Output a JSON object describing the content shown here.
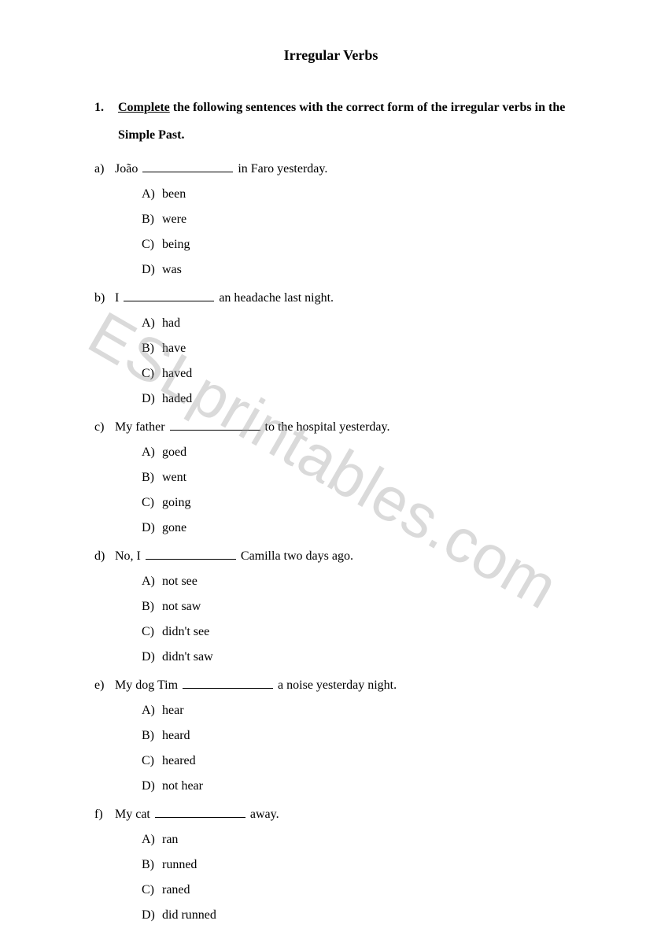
{
  "title": "Irregular Verbs",
  "instruction": {
    "number": "1.",
    "underlined": "Complete",
    "rest": " the following sentences with the correct form of the irregular verbs in the Simple Past."
  },
  "questions": [
    {
      "letter": "a)",
      "before": "João ",
      "after": " in Faro yesterday.",
      "options": [
        {
          "letter": "A)",
          "text": "been"
        },
        {
          "letter": "B)",
          "text": "were"
        },
        {
          "letter": "C)",
          "text": "being"
        },
        {
          "letter": "D)",
          "text": "was"
        }
      ]
    },
    {
      "letter": "b)",
      "before": "I ",
      "after": " an headache last night.",
      "options": [
        {
          "letter": "A)",
          "text": "had"
        },
        {
          "letter": "B)",
          "text": "have"
        },
        {
          "letter": "C)",
          "text": "haved"
        },
        {
          "letter": "D)",
          "text": "haded"
        }
      ]
    },
    {
      "letter": "c)",
      "before": "My father ",
      "after": " to the hospital yesterday.",
      "options": [
        {
          "letter": "A)",
          "text": "goed"
        },
        {
          "letter": "B)",
          "text": "went"
        },
        {
          "letter": "C)",
          "text": "going"
        },
        {
          "letter": "D)",
          "text": "gone"
        }
      ]
    },
    {
      "letter": "d)",
      "before": "No, I ",
      "after": " Camilla two days ago.",
      "options": [
        {
          "letter": "A)",
          "text": "not see"
        },
        {
          "letter": "B)",
          "text": "not saw"
        },
        {
          "letter": "C)",
          "text": "didn't see"
        },
        {
          "letter": "D)",
          "text": "didn't saw"
        }
      ]
    },
    {
      "letter": "e)",
      "before": "My dog Tim ",
      "after": " a noise yesterday night.",
      "options": [
        {
          "letter": "A)",
          "text": "hear"
        },
        {
          "letter": "B)",
          "text": "heard"
        },
        {
          "letter": "C)",
          "text": "heared"
        },
        {
          "letter": "D)",
          "text": "not hear"
        }
      ]
    },
    {
      "letter": "f)",
      "before": "My cat ",
      "after": " away.",
      "options": [
        {
          "letter": "A)",
          "text": "ran"
        },
        {
          "letter": "B)",
          "text": "runned"
        },
        {
          "letter": "C)",
          "text": "raned"
        },
        {
          "letter": "D)",
          "text": "did runned"
        }
      ]
    }
  ],
  "watermark": "ESLprintables.com"
}
